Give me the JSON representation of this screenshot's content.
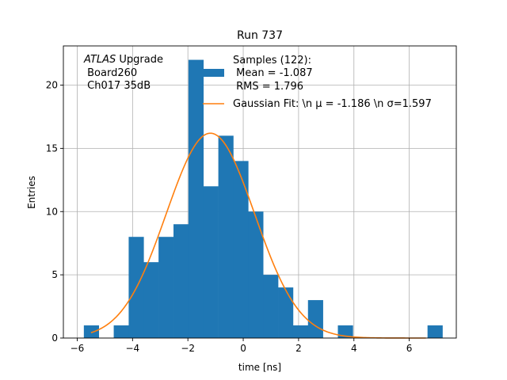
{
  "chart_data": {
    "type": "bar",
    "title": "Run 737",
    "xlabel": "time [ns]",
    "ylabel": "Entries",
    "xlim": [
      -6.5,
      7.7
    ],
    "ylim": [
      0,
      23.1
    ],
    "xticks": [
      -6,
      -4,
      -2,
      0,
      2,
      4,
      6
    ],
    "yticks": [
      0,
      5,
      10,
      15,
      20
    ],
    "grid": true,
    "bin_width": 0.54,
    "bins": [
      {
        "x0": -5.76,
        "count": 1
      },
      {
        "x0": -5.22,
        "count": 0
      },
      {
        "x0": -4.68,
        "count": 1
      },
      {
        "x0": -4.14,
        "count": 8
      },
      {
        "x0": -3.6,
        "count": 6
      },
      {
        "x0": -3.06,
        "count": 8
      },
      {
        "x0": -2.52,
        "count": 9
      },
      {
        "x0": -1.98,
        "count": 22
      },
      {
        "x0": -1.44,
        "count": 12
      },
      {
        "x0": -0.9,
        "count": 16
      },
      {
        "x0": -0.36,
        "count": 14
      },
      {
        "x0": 0.18,
        "count": 10
      },
      {
        "x0": 0.72,
        "count": 5
      },
      {
        "x0": 1.26,
        "count": 4
      },
      {
        "x0": 1.8,
        "count": 1
      },
      {
        "x0": 2.34,
        "count": 3
      },
      {
        "x0": 2.88,
        "count": 0
      },
      {
        "x0": 3.42,
        "count": 1
      },
      {
        "x0": 3.96,
        "count": 0
      },
      {
        "x0": 4.5,
        "count": 0
      },
      {
        "x0": 5.04,
        "count": 0
      },
      {
        "x0": 5.58,
        "count": 0
      },
      {
        "x0": 6.12,
        "count": 0
      },
      {
        "x0": 6.66,
        "count": 1
      }
    ],
    "fit": {
      "type": "gaussian",
      "mu": -1.186,
      "sigma": 1.597,
      "amplitude": 16.2,
      "x_range": [
        -5.5,
        6.6
      ]
    },
    "annotation_lines": [
      "ATLAS",
      " Upgrade",
      " Board260",
      " Ch017 35dB"
    ],
    "legend": {
      "placement": "top-right",
      "entries": [
        {
          "lines": [
            "Samples (122):",
            " Mean = -1.087",
            " RMS = 1.796"
          ],
          "kind": "patch"
        },
        {
          "lines": [
            "Gaussian Fit: \\n μ = -1.186 \\n σ=1.597"
          ],
          "kind": "line"
        }
      ]
    },
    "colors": {
      "bars": "#1f77b4",
      "fit": "#ff7f0e",
      "grid": "#b0b0b0"
    }
  }
}
